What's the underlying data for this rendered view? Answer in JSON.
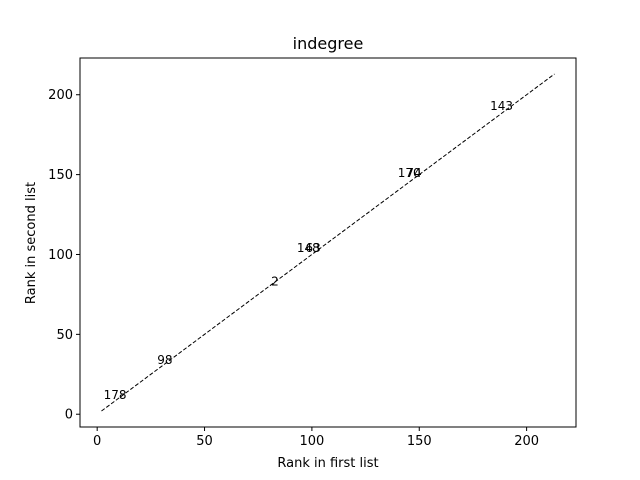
{
  "chart_data": {
    "type": "scatter",
    "title": "indegree",
    "xlabel": "Rank in first list",
    "ylabel": "Rank in second list",
    "xlim": [
      -8,
      223
    ],
    "ylim": [
      -8,
      223
    ],
    "xticks": [
      0,
      50,
      100,
      150,
      200
    ],
    "yticks": [
      0,
      50,
      100,
      150,
      200
    ],
    "grid": false,
    "reference_line": {
      "style": "dashed",
      "color": "#000000",
      "from": [
        2,
        2
      ],
      "to": [
        213,
        213
      ]
    },
    "points": [
      {
        "label": "178",
        "x": 3,
        "y": 12
      },
      {
        "label": "98",
        "x": 28,
        "y": 34
      },
      {
        "label": "2",
        "x": 81,
        "y": 83
      },
      {
        "label": "148",
        "x": 93,
        "y": 104
      },
      {
        "label": "63",
        "x": 97,
        "y": 104
      },
      {
        "label": "170",
        "x": 140,
        "y": 151
      },
      {
        "label": "74",
        "x": 144,
        "y": 151
      },
      {
        "label": "143",
        "x": 183,
        "y": 193
      }
    ]
  }
}
